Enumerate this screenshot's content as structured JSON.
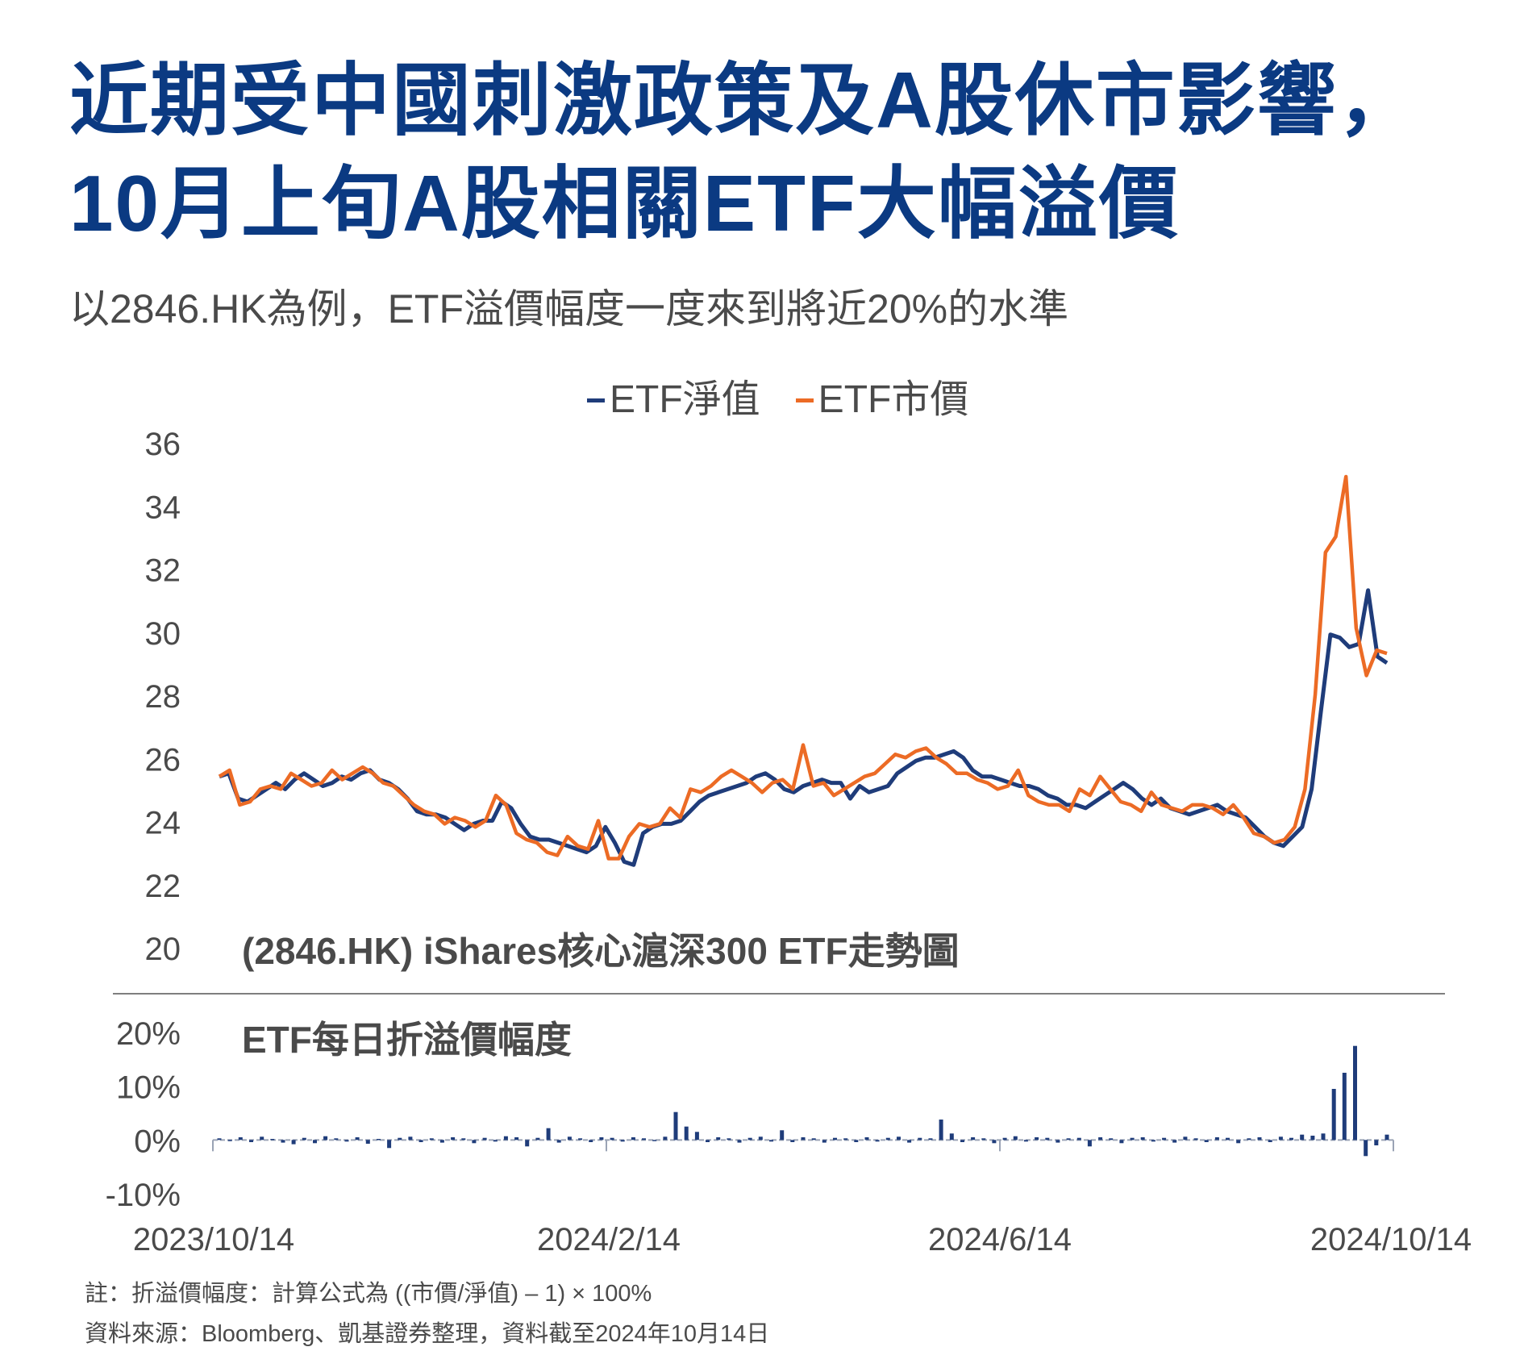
{
  "header": {
    "title_line1": "近期受中國刺激政策及A股休市影響，",
    "title_line2": "10月上旬A股相關ETF大幅溢價",
    "subtitle": "以2846.HK為例，ETF溢價幅度一度來到將近20%的水準"
  },
  "colors": {
    "title": "#0b3a82",
    "nav": "#1f3c7a",
    "price": "#ec6b25",
    "text": "#4a4a4a"
  },
  "chart_data": [
    {
      "type": "line",
      "title": "(2846.HK) iShares核心滬深300 ETF走勢圖",
      "legend": {
        "placement": "top-center"
      },
      "ylim": [
        20,
        36
      ],
      "yticks": [
        "36",
        "34",
        "32",
        "30",
        "28",
        "26",
        "24",
        "22",
        "20"
      ],
      "series": [
        {
          "name": "ETF淨值",
          "color": "#1f3c7a",
          "values": [
            25.4,
            25.5,
            24.7,
            24.6,
            24.8,
            25.0,
            25.2,
            25.0,
            25.3,
            25.5,
            25.3,
            25.1,
            25.2,
            25.4,
            25.3,
            25.5,
            25.6,
            25.3,
            25.2,
            25.0,
            24.7,
            24.3,
            24.2,
            24.2,
            24.1,
            23.9,
            23.7,
            23.9,
            24.0,
            24.0,
            24.6,
            24.4,
            23.9,
            23.5,
            23.4,
            23.4,
            23.3,
            23.2,
            23.1,
            23.0,
            23.2,
            23.8,
            23.3,
            22.7,
            22.6,
            23.6,
            23.8,
            23.9,
            23.9,
            24.0,
            24.3,
            24.6,
            24.8,
            24.9,
            25.0,
            25.1,
            25.2,
            25.4,
            25.5,
            25.3,
            25.0,
            24.9,
            25.1,
            25.2,
            25.3,
            25.2,
            25.2,
            24.7,
            25.1,
            24.9,
            25.0,
            25.1,
            25.5,
            25.7,
            25.9,
            26.0,
            26.0,
            26.1,
            26.2,
            26.0,
            25.6,
            25.4,
            25.4,
            25.3,
            25.2,
            25.1,
            25.1,
            25.0,
            24.8,
            24.7,
            24.5,
            24.5,
            24.4,
            24.6,
            24.8,
            25.0,
            25.2,
            25.0,
            24.7,
            24.5,
            24.7,
            24.4,
            24.3,
            24.2,
            24.3,
            24.4,
            24.5,
            24.3,
            24.2,
            24.1,
            23.8,
            23.5,
            23.3,
            23.2,
            23.5,
            23.8,
            25.0,
            27.5,
            29.9,
            29.8,
            29.5,
            29.6,
            31.3,
            29.2,
            29.0
          ],
          "note": "approximate daily NAV read from chart"
        },
        {
          "name": "ETF市價",
          "color": "#ec6b25",
          "values": [
            25.4,
            25.6,
            24.5,
            24.6,
            25.0,
            25.1,
            25.0,
            25.5,
            25.3,
            25.1,
            25.2,
            25.6,
            25.3,
            25.5,
            25.7,
            25.5,
            25.2,
            25.1,
            24.8,
            24.5,
            24.3,
            24.2,
            23.9,
            24.1,
            24.0,
            23.8,
            24.0,
            24.8,
            24.5,
            23.6,
            23.4,
            23.3,
            23.0,
            22.9,
            23.5,
            23.2,
            23.1,
            24.0,
            22.8,
            22.8,
            23.5,
            23.9,
            23.8,
            23.9,
            24.4,
            24.1,
            25.0,
            24.9,
            25.1,
            25.4,
            25.6,
            25.4,
            25.2,
            24.9,
            25.2,
            25.3,
            25.0,
            26.4,
            25.1,
            25.2,
            24.8,
            25.0,
            25.2,
            25.4,
            25.5,
            25.8,
            26.1,
            26.0,
            26.2,
            26.3,
            26.0,
            25.8,
            25.5,
            25.5,
            25.3,
            25.2,
            25.0,
            25.1,
            25.6,
            24.8,
            24.6,
            24.5,
            24.5,
            24.3,
            25.0,
            24.8,
            25.4,
            25.0,
            24.6,
            24.5,
            24.3,
            24.9,
            24.5,
            24.4,
            24.3,
            24.5,
            24.5,
            24.4,
            24.2,
            24.5,
            24.1,
            23.6,
            23.5,
            23.3,
            23.4,
            23.8,
            25.0,
            28.0,
            32.5,
            33.0,
            34.9,
            30.1,
            28.6,
            29.4,
            29.3
          ],
          "note": "approximate daily price read from chart"
        }
      ]
    },
    {
      "type": "bar",
      "title": "ETF每日折溢價幅度",
      "xticks": [
        "2023/10/14",
        "2024/2/14",
        "2024/6/14",
        "2024/10/14"
      ],
      "yticks": [
        "20%",
        "10%",
        "0%",
        "-10%"
      ],
      "ylim": [
        -10,
        20
      ],
      "values": [
        0.3,
        -0.2,
        0.5,
        -0.4,
        0.6,
        0.2,
        -0.5,
        -0.8,
        0.4,
        -0.6,
        0.7,
        0.3,
        -0.3,
        0.5,
        -0.7,
        0.2,
        -1.5,
        0.4,
        0.6,
        -0.4,
        0.3,
        -0.5,
        0.5,
        0.3,
        -0.6,
        0.4,
        -0.3,
        0.7,
        0.5,
        -1.2,
        0.4,
        2.2,
        -0.5,
        0.6,
        0.3,
        -0.4,
        0.5,
        0.4,
        -0.3,
        0.5,
        0.3,
        -0.2,
        0.6,
        5.2,
        2.5,
        1.5,
        -0.4,
        0.5,
        0.3,
        -0.5,
        0.4,
        0.6,
        -0.3,
        1.8,
        -0.4,
        0.5,
        0.3,
        -0.5,
        0.4,
        0.3,
        -0.4,
        0.5,
        -0.3,
        0.4,
        0.6,
        -0.5,
        0.4,
        0.3,
        3.8,
        1.2,
        -0.4,
        0.5,
        0.3,
        -0.6,
        0.4,
        0.7,
        -0.3,
        0.5,
        0.4,
        -0.5,
        0.3,
        0.4,
        -1.2,
        0.5,
        0.3,
        -0.6,
        0.4,
        0.5,
        -0.3,
        0.4,
        -0.5,
        0.6,
        0.3,
        -0.4,
        0.5,
        0.4,
        -0.6,
        0.3,
        0.5,
        -0.4,
        0.6,
        0.4,
        1.0,
        0.8,
        1.2,
        9.5,
        12.5,
        17.5,
        -3.0,
        -1.0,
        1.0
      ],
      "note": "approximate daily premium/discount (%) read from chart"
    }
  ],
  "footer": {
    "note": "註：折溢價幅度：計算公式為 ((市價/淨值) – 1) × 100%",
    "source": "資料來源：Bloomberg、凱基證券整理，資料截至2024年10月14日"
  }
}
